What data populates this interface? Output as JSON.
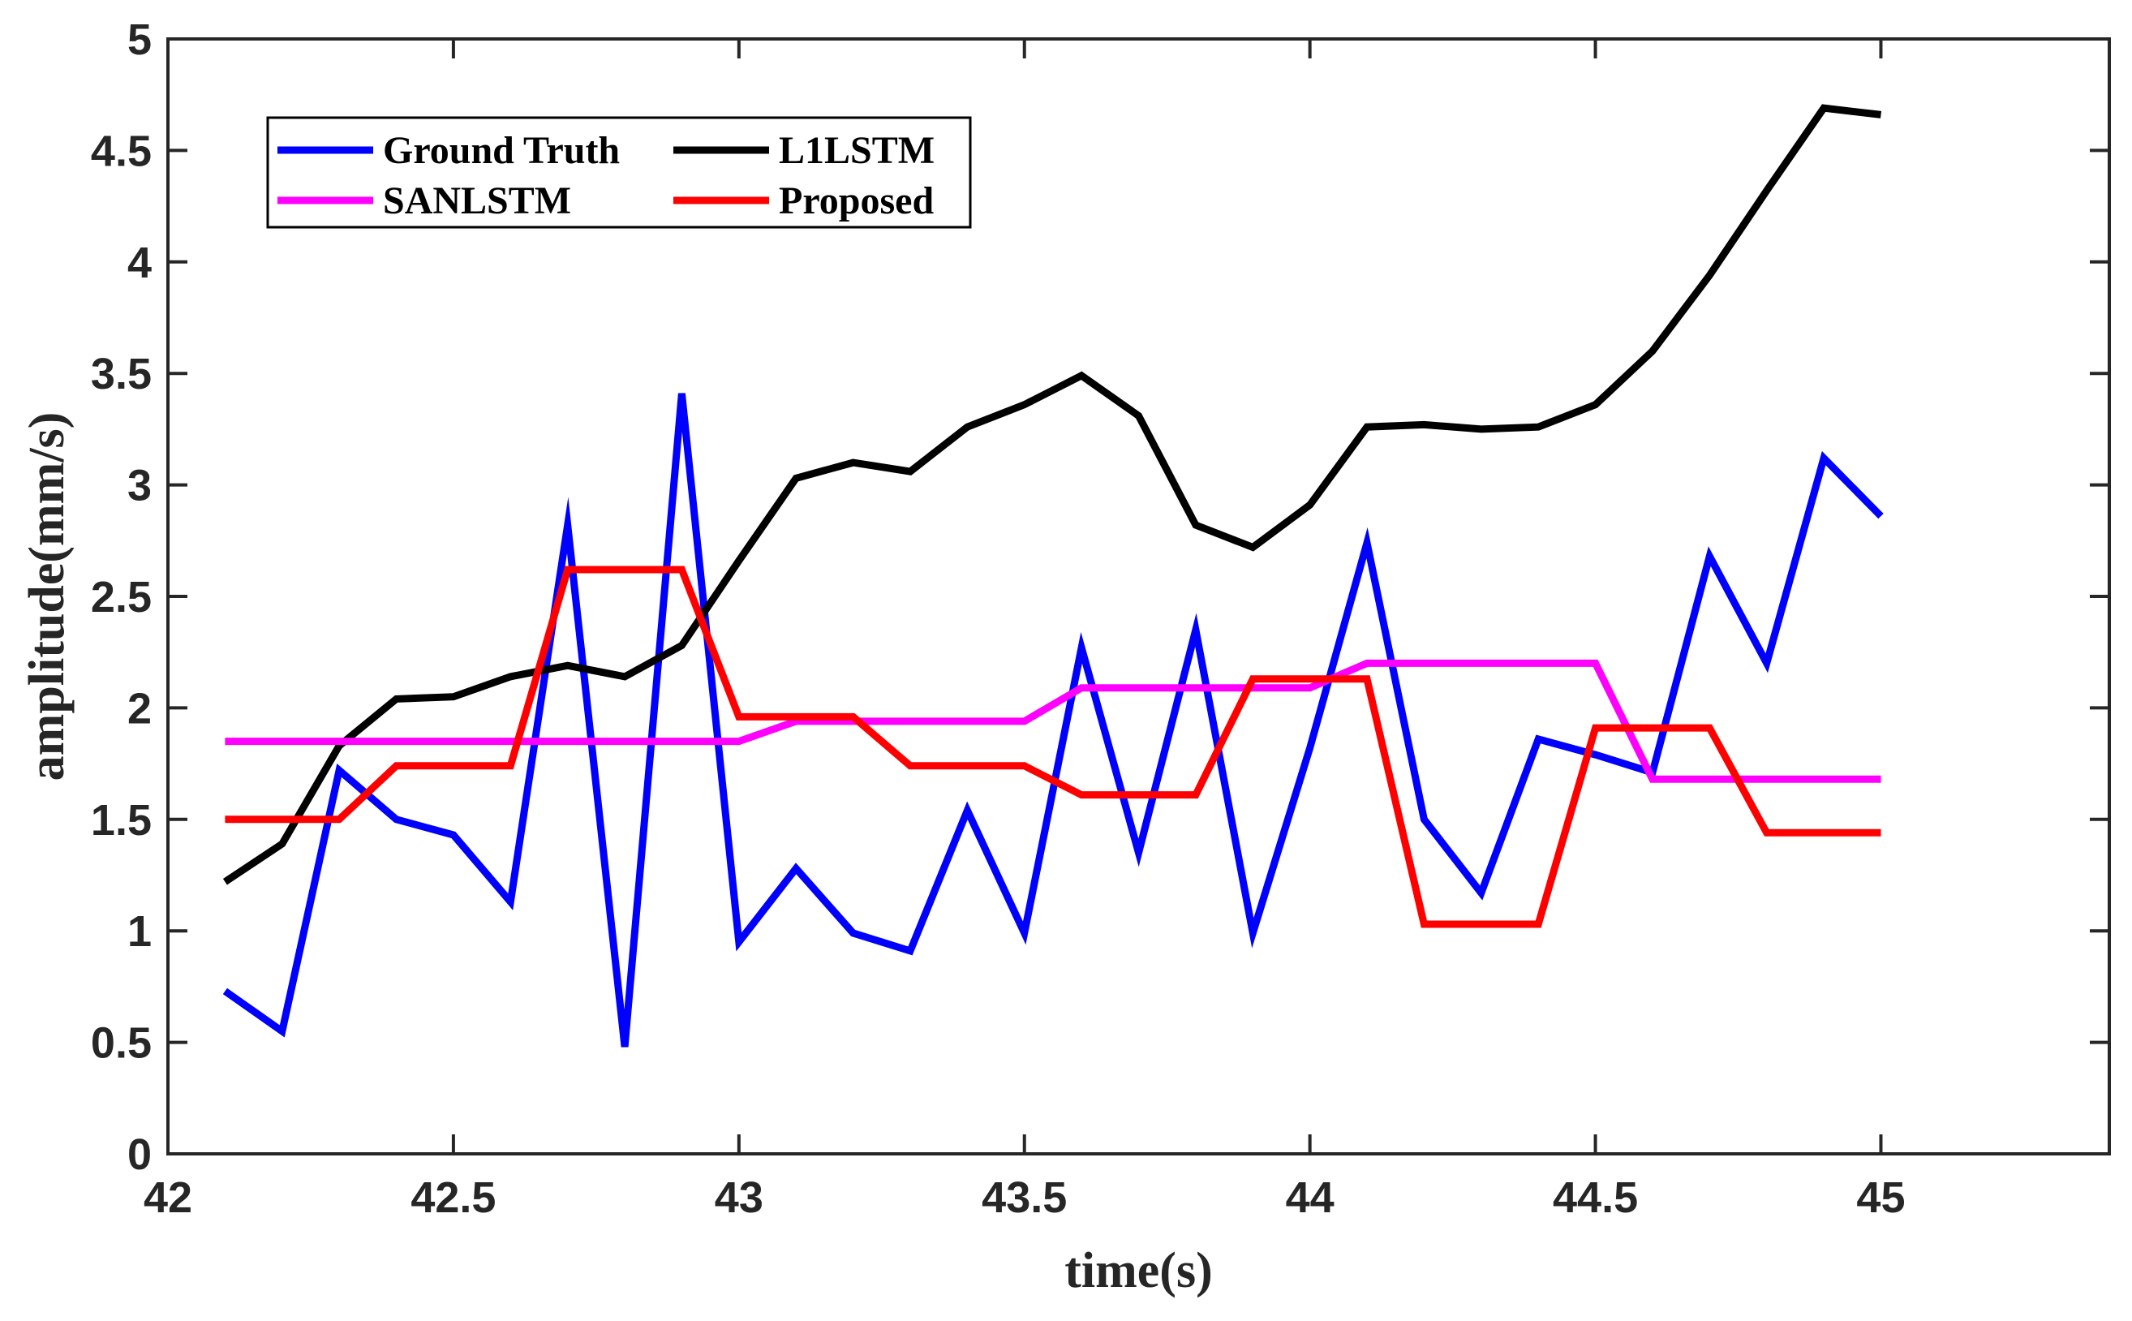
{
  "chart_data": {
    "type": "line",
    "title": "",
    "xlabel": "time(s)",
    "ylabel": "amplitude(mm/s)",
    "xlim": [
      42,
      45.4
    ],
    "ylim": [
      0,
      5
    ],
    "xticks": [
      42,
      42.5,
      43,
      43.5,
      44,
      44.5,
      45
    ],
    "xtick_labels": [
      "42",
      "42.5",
      "43",
      "43.5",
      "44",
      "44.5",
      "45"
    ],
    "yticks": [
      0,
      0.5,
      1,
      1.5,
      2,
      2.5,
      3,
      3.5,
      4,
      4.5,
      5
    ],
    "ytick_labels": [
      "0",
      "0.5",
      "1",
      "1.5",
      "2",
      "2.5",
      "3",
      "3.5",
      "4",
      "4.5",
      "5"
    ],
    "grid": false,
    "legend_position": "top-left",
    "x": [
      42.1,
      42.2,
      42.3,
      42.4,
      42.5,
      42.6,
      42.7,
      42.8,
      42.9,
      43.0,
      43.1,
      43.2,
      43.3,
      43.4,
      43.5,
      43.6,
      43.7,
      43.8,
      43.9,
      44.0,
      44.1,
      44.2,
      44.3,
      44.4,
      44.5,
      44.6,
      44.7,
      44.8,
      44.9,
      45.0
    ],
    "series": [
      {
        "name": "Ground Truth",
        "color": "#0000ff",
        "values": [
          0.73,
          0.55,
          1.72,
          1.5,
          1.43,
          1.13,
          2.82,
          0.48,
          3.41,
          0.95,
          1.28,
          0.99,
          0.91,
          1.54,
          0.99,
          2.27,
          1.35,
          2.35,
          0.99,
          1.82,
          2.74,
          1.5,
          1.17,
          1.86,
          1.79,
          1.71,
          2.68,
          2.2,
          3.12,
          2.86
        ]
      },
      {
        "name": "L1LSTM",
        "color": "#000000",
        "values": [
          1.22,
          1.39,
          1.83,
          2.04,
          2.05,
          2.14,
          2.19,
          2.14,
          2.28,
          2.66,
          3.03,
          3.1,
          3.06,
          3.26,
          3.36,
          3.49,
          3.31,
          2.82,
          2.72,
          2.91,
          3.26,
          3.27,
          3.25,
          3.26,
          3.36,
          3.6,
          3.94,
          4.32,
          4.69,
          4.66
        ]
      },
      {
        "name": "SANLSTM",
        "color": "#ff00ff",
        "values": [
          1.85,
          1.85,
          1.85,
          1.85,
          1.85,
          1.85,
          1.85,
          1.85,
          1.85,
          1.85,
          1.94,
          1.94,
          1.94,
          1.94,
          1.94,
          2.09,
          2.09,
          2.09,
          2.09,
          2.09,
          2.2,
          2.2,
          2.2,
          2.2,
          2.2,
          1.68,
          1.68,
          1.68,
          1.68,
          1.68
        ]
      },
      {
        "name": "Proposed",
        "color": "#ff0000",
        "values": [
          1.5,
          1.5,
          1.5,
          1.74,
          1.74,
          1.74,
          2.62,
          2.62,
          2.62,
          1.96,
          1.96,
          1.96,
          1.74,
          1.74,
          1.74,
          1.61,
          1.61,
          1.61,
          2.13,
          2.13,
          2.13,
          1.03,
          1.03,
          1.03,
          1.91,
          1.91,
          1.91,
          1.44,
          1.44,
          1.44
        ]
      }
    ],
    "legend_order": [
      "Ground Truth",
      "L1LSTM",
      "SANLSTM",
      "Proposed"
    ]
  }
}
